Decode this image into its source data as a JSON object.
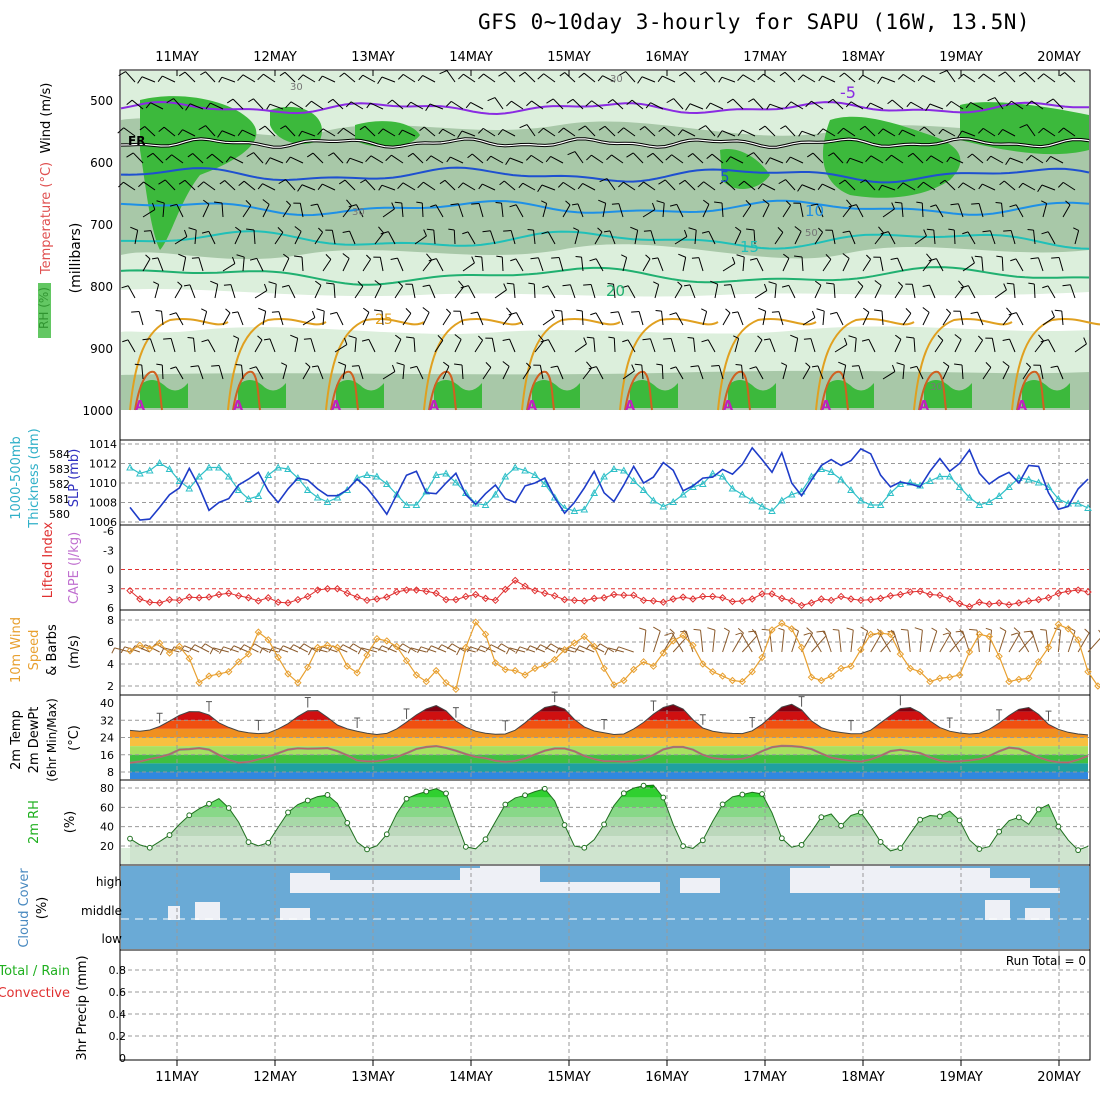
{
  "title": "GFS 0~10day 3-hourly for SAPU (16W, 13.5N)",
  "dates": [
    "11MAY",
    "12MAY",
    "13MAY",
    "14MAY",
    "15MAY",
    "16MAY",
    "17MAY",
    "18MAY",
    "19MAY",
    "20MAY"
  ],
  "colors": {
    "rh_dark": "#3cb93c",
    "rh_mid": "#a8c8a8",
    "rh_light": "#dcefdc",
    "freezing": "#000000",
    "minus5": "#8a2be2",
    "t5": "#1e50d0",
    "t10": "#1e90e6",
    "t15": "#20c0b8",
    "t20": "#20b070",
    "t25": "#e0a020",
    "slp": "#1e3cc8",
    "thickness": "#30c0c8",
    "li": "#e03030",
    "wind_speed": "#e8a030",
    "barb": "#8b5a2b",
    "cloud": "#6aaad6",
    "precip_grid": "#999999"
  },
  "chart_data": [
    {
      "id": "upper_air",
      "type": "heatmap",
      "y_axis_label": "(millibars)",
      "legend_labels": [
        "RH (%)",
        "Temperature (°C)",
        "Wind (m/s)"
      ],
      "levels": [
        500,
        600,
        700,
        800,
        900,
        1000
      ],
      "contour_labels": [
        "FR",
        "-5",
        "5",
        "10",
        "15",
        "20",
        "25",
        "30",
        "30",
        "30",
        "50",
        "30"
      ],
      "extra_labels": [
        "A"
      ]
    },
    {
      "id": "pressure_thickness",
      "type": "line",
      "left_labels": [
        "1000-500mb",
        "Thickness (dm)"
      ],
      "left_ticks": [
        584,
        583,
        582,
        581,
        580
      ],
      "right_label": "SLP (mb)",
      "right_ticks": [
        1014,
        1012,
        1010,
        1008,
        1006
      ],
      "series": [
        {
          "name": "SLP",
          "values": [
            1007.5,
            1006.2,
            1006.3,
            1007.5,
            1008.8,
            1009.5,
            1011.5,
            1009.6,
            1007.2,
            1008.0,
            1008.4,
            1009.8,
            1010.4,
            1011.1,
            1009.2,
            1008.0,
            1009.4,
            1010.5,
            1010.3,
            1009.4,
            1008.7,
            1008.7,
            1009.3,
            1010.4,
            1009.5,
            1008.2,
            1006.8,
            1008.8,
            1010.8,
            1011.2,
            1009.0,
            1008.9,
            1010.0,
            1011.0,
            1008.8,
            1007.8,
            1008.9,
            1009.8,
            1008.4,
            1008.0,
            1009.7,
            1010.0,
            1010.5,
            1008.5,
            1006.9,
            1008.0,
            1009.5,
            1011.2,
            1009.0,
            1008.1,
            1009.8,
            1011.7,
            1010.0,
            1010.6,
            1012.1,
            1011.3,
            1009.2,
            1009.7,
            1010.5,
            1010.6,
            1011.4,
            1010.9,
            1011.9,
            1013.6,
            1012.4,
            1011.1,
            1013.1,
            1010.0,
            1008.7,
            1010.3,
            1011.8,
            1012.4,
            1011.8,
            1012.3,
            1013.5,
            1013.0,
            1010.8,
            1009.6,
            1010.1,
            1009.9,
            1009.6,
            1011.2,
            1012.5,
            1011.2,
            1012.0,
            1013.4,
            1011.0,
            1009.9,
            1010.6,
            1011.1,
            1010.0,
            1011.8,
            1011.7,
            1009.0,
            1007.3,
            1007.6,
            1009.4,
            1010.4
          ]
        },
        {
          "name": "Thickness",
          "values": [
            583.1,
            582.7,
            582.9,
            583.4,
            583.0,
            582.2,
            581.7,
            582.5,
            583.1,
            583.1,
            582.5,
            581.6,
            581.0,
            581.2,
            582.6,
            583.1,
            583.0,
            582.4,
            581.6,
            581.1,
            580.8,
            581.1,
            581.6,
            582.4,
            582.6,
            582.5,
            582.0,
            581.3,
            580.6,
            580.6,
            581.5,
            582.6,
            582.7,
            582.1,
            581.4,
            580.7,
            580.6,
            581.3,
            582.5,
            583.1,
            582.9,
            582.6,
            582.0,
            581.1,
            580.4,
            580.2,
            580.3,
            581.4,
            582.5,
            583.0,
            582.9,
            582.2,
            581.6,
            580.9,
            580.5,
            580.8,
            581.3,
            581.8,
            582.0,
            582.7,
            582.5,
            581.7,
            581.3,
            580.9,
            580.5,
            580.2,
            580.9,
            581.3,
            581.5,
            582.5,
            583.0,
            582.8,
            582.3,
            581.6,
            580.9,
            580.6,
            580.6,
            581.4,
            582.0,
            582.1,
            581.9,
            582.2,
            582.5,
            582.5,
            581.8,
            581.1,
            580.6,
            580.8,
            581.2,
            581.8,
            582.4,
            582.3,
            582.1,
            581.8,
            581.0,
            580.7,
            580.7,
            580.4
          ]
        }
      ]
    },
    {
      "id": "stability",
      "type": "line",
      "left_labels": [
        "Lifted Index"
      ],
      "left_ticks": [
        -6,
        -3,
        0,
        3,
        6
      ],
      "right_label": "CAPE (J/kg)",
      "series": [
        {
          "name": "Lifted Index",
          "values": [
            3.3,
            4.6,
            5.1,
            5.2,
            4.7,
            4.8,
            4.3,
            4.4,
            4.3,
            3.9,
            3.7,
            4.1,
            4.4,
            4.9,
            4.4,
            5.1,
            5.2,
            4.7,
            4.2,
            3.2,
            3.0,
            3.0,
            3.7,
            4.3,
            4.8,
            4.6,
            4.3,
            3.5,
            3.2,
            3.2,
            3.4,
            3.7,
            4.7,
            4.7,
            4.2,
            3.9,
            4.5,
            4.8,
            3.1,
            1.7,
            2.6,
            3.3,
            3.7,
            4.1,
            4.7,
            4.8,
            4.9,
            4.5,
            4.4,
            3.9,
            4.0,
            4.0,
            4.8,
            4.9,
            5.1,
            4.6,
            4.3,
            4.6,
            4.2,
            4.2,
            4.4,
            5.0,
            4.9,
            4.6,
            3.8,
            3.8,
            4.5,
            4.9,
            5.6,
            5.2,
            4.6,
            4.8,
            4.2,
            4.6,
            4.8,
            4.7,
            4.5,
            4.1,
            3.9,
            3.5,
            3.4,
            3.9,
            4.0,
            4.6,
            5.3,
            5.8,
            5.1,
            5.4,
            5.2,
            5.5,
            5.2,
            4.9,
            4.7,
            4.4,
            3.7,
            3.4,
            3.2,
            3.5
          ]
        }
      ]
    },
    {
      "id": "wind10m",
      "type": "line",
      "left_labels": [
        "10m Wind",
        "Speed",
        "& Barbs"
      ],
      "left_ticks": [
        8,
        6,
        4,
        2
      ],
      "right_label": "(m/s)",
      "series": [
        {
          "name": "Speed",
          "values": [
            5.2,
            5.7,
            5.4,
            5.9,
            5.0,
            5.6,
            4.5,
            2.3,
            2.9,
            3.1,
            3.3,
            4.2,
            4.9,
            6.9,
            6.2,
            4.6,
            3.1,
            2.3,
            3.7,
            5.5,
            5.7,
            5.5,
            3.8,
            3.2,
            4.8,
            6.3,
            6.1,
            5.6,
            4.3,
            3.0,
            2.4,
            3.4,
            2.3,
            1.7,
            5.5,
            7.8,
            6.7,
            4.1,
            3.5,
            3.4,
            3.0,
            3.6,
            3.9,
            4.4,
            5.3,
            5.9,
            6.5,
            5.6,
            3.6,
            2.1,
            2.5,
            3.5,
            4.2,
            3.8,
            5.0,
            6.1,
            6.6,
            5.7,
            4.0,
            3.3,
            2.9,
            2.5,
            2.4,
            3.3,
            4.6,
            7.1,
            7.7,
            7.2,
            5.5,
            2.8,
            2.5,
            2.9,
            3.6,
            3.8,
            5.3,
            6.7,
            6.8,
            6.7,
            4.9,
            3.6,
            3.3,
            2.4,
            2.7,
            2.8,
            3.0,
            5.1,
            6.7,
            6.5,
            4.7,
            2.4,
            2.6,
            2.7,
            4.2,
            5.5,
            7.6,
            7.2,
            6.2,
            3.3,
            2.0,
            1.6
          ]
        }
      ]
    },
    {
      "id": "temperature2m",
      "type": "area",
      "left_labels": [
        "2m Temp",
        "2m DewPt",
        "(6hr Min/Max)"
      ],
      "left_ticks": [
        40,
        32,
        24,
        16,
        8
      ],
      "right_label": "(°C)",
      "series": [
        {
          "name": "2m Temp",
          "values": [
            27.3,
            26.9,
            27.5,
            29.1,
            31.6,
            34.3,
            36.0,
            35.9,
            34.5,
            30.8,
            28.7,
            27.0,
            26.2,
            25.8,
            26.1,
            28.0,
            30.4,
            33.8,
            36.4,
            36.5,
            33.3,
            29.8,
            28.0,
            26.9,
            26.0,
            25.4,
            25.9,
            28.0,
            31.1,
            34.5,
            37.2,
            38.8,
            36.4,
            31.7,
            28.8,
            26.9,
            26.0,
            25.5,
            25.6,
            27.4,
            30.8,
            34.7,
            37.9,
            38.9,
            37.2,
            32.4,
            28.9,
            27.0,
            26.2,
            25.4,
            25.6,
            28.0,
            31.0,
            34.8,
            37.9,
            39.2,
            37.2,
            32.3,
            28.4,
            26.9,
            26.2,
            25.9,
            25.8,
            27.1,
            30.1,
            34.2,
            38.1,
            39.4,
            36.8,
            31.7,
            28.6,
            27.0,
            26.3,
            25.7,
            25.8,
            27.4,
            30.8,
            34.2,
            37.4,
            37.9,
            35.6,
            31.7,
            28.6,
            26.9,
            26.1,
            25.6,
            26.0,
            27.8,
            30.7,
            34.2,
            37.1,
            37.9,
            34.7,
            30.1,
            27.8,
            26.4,
            25.6,
            25.2
          ]
        },
        {
          "name": "2m DewPt",
          "values": [
            12.2,
            12.8,
            14.0,
            14.9,
            16.2,
            18.4,
            18.6,
            19.1,
            18.4,
            15.9,
            13.6,
            12.3,
            12.7,
            13.9,
            15.0,
            16.7,
            18.4,
            19.0,
            18.8,
            18.9,
            19.1,
            17.7,
            15.7,
            13.4,
            12.9,
            13.0,
            13.8,
            14.9,
            16.7,
            18.7,
            19.6,
            20.0,
            19.2,
            17.9,
            16.3,
            15.0,
            14.4,
            13.2,
            12.7,
            13.1,
            14.3,
            16.1,
            17.9,
            18.9,
            18.9,
            17.6,
            15.4,
            14.0,
            13.0,
            13.0,
            12.7,
            13.1,
            14.1,
            15.9,
            18.5,
            19.6,
            19.6,
            18.4,
            16.0,
            14.5,
            14.0,
            13.9,
            14.1,
            15.4,
            17.7,
            19.5,
            20.1,
            20.0,
            19.6,
            18.6,
            16.6,
            14.7,
            13.8,
            13.2,
            12.8,
            13.8,
            15.5,
            17.7,
            18.3,
            17.6,
            16.8,
            14.8,
            13.3,
            12.7,
            13.0,
            13.4,
            14.0,
            15.4,
            17.6,
            19.3,
            18.8,
            16.9,
            14.8,
            13.3,
            12.5,
            12.4,
            13.7,
            15.4
          ]
        }
      ]
    },
    {
      "id": "rh2m",
      "type": "area",
      "left_labels": [
        "2m RH"
      ],
      "left_ticks": [
        80,
        60,
        40,
        20
      ],
      "right_label": "(%)",
      "series": [
        {
          "name": "2m RH",
          "values": [
            27.6,
            21.1,
            18.2,
            24.5,
            31.3,
            42.3,
            51.8,
            58.5,
            63.7,
            69.0,
            59.3,
            44.7,
            24.0,
            20.1,
            23.4,
            39.2,
            54.7,
            62.9,
            67.1,
            71.1,
            72.8,
            64.1,
            43.9,
            23.9,
            16.5,
            20.2,
            32.1,
            53.4,
            68.9,
            73.3,
            76.4,
            79.3,
            74.4,
            46.6,
            19.1,
            17.1,
            26.9,
            45.1,
            62.9,
            69.8,
            72.5,
            76.3,
            79.2,
            66.7,
            41.7,
            19.9,
            18.2,
            26.5,
            42.3,
            61.7,
            74.5,
            79.9,
            82.4,
            83.0,
            70.1,
            42.3,
            19.9,
            17.5,
            25.9,
            45.4,
            63.0,
            70.9,
            73.2,
            75.6,
            73.8,
            54.3,
            28.0,
            18.8,
            21.2,
            34.8,
            49.8,
            53.1,
            40.9,
            51.6,
            54.8,
            40.4,
            24.2,
            14.9,
            17.8,
            32.7,
            47.2,
            51.6,
            50.6,
            56.1,
            46.5,
            26.2,
            16.9,
            19.4,
            34.8,
            46.2,
            49.6,
            42.4,
            57.8,
            62.8,
            40.0,
            26.1,
            15.7,
            19.7
          ]
        }
      ]
    },
    {
      "id": "cloud_cover",
      "type": "heatmap",
      "left_labels": [
        "Cloud Cover"
      ],
      "right_label": "(%)",
      "layer_labels": [
        "high",
        "middle",
        "low"
      ]
    },
    {
      "id": "precip3hr",
      "type": "bar",
      "left_labels": [
        "Total / Rain",
        "Convective"
      ],
      "ylabel": "3hr Precip (mm)",
      "ticks": [
        0.8,
        0.6,
        0.4,
        0.2,
        0
      ],
      "ylim": [
        0,
        1
      ],
      "values": [],
      "run_total_label": "Run Total = 0"
    }
  ]
}
